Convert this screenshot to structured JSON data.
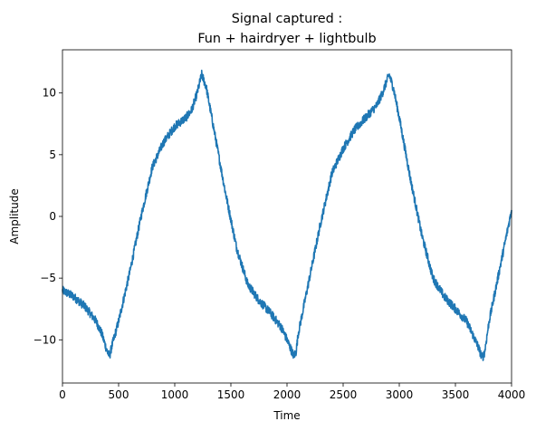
{
  "chart_data": {
    "type": "line",
    "title": "Signal captured :",
    "subtitle": "Fun + hairdryer + lightbulb",
    "xlabel": "Time",
    "ylabel": "Amplitude",
    "xlim": [
      0,
      4000
    ],
    "ylim": [
      -13.5,
      13.5
    ],
    "xticks": [
      0,
      500,
      1000,
      1500,
      2000,
      2500,
      3000,
      3500,
      4000
    ],
    "xtick_labels": [
      "0",
      "500",
      "1000",
      "1500",
      "2000",
      "2500",
      "3000",
      "3500",
      "4000"
    ],
    "yticks": [
      -10,
      -5,
      0,
      5,
      10
    ],
    "ytick_labels": [
      "−10",
      "−5",
      "0",
      "5",
      "10"
    ],
    "grid": false,
    "series": [
      {
        "color": "#1f77b4",
        "noise_amplitude": 0.35,
        "x": [
          0,
          100,
          200,
          300,
          350,
          400,
          420,
          440,
          500,
          600,
          700,
          800,
          900,
          1000,
          1100,
          1150,
          1200,
          1240,
          1280,
          1350,
          1450,
          1550,
          1650,
          1750,
          1850,
          1950,
          2000,
          2060,
          2080,
          2100,
          2200,
          2300,
          2400,
          2500,
          2600,
          2700,
          2800,
          2850,
          2910,
          2950,
          3000,
          3100,
          3200,
          3300,
          3400,
          3500,
          3600,
          3700,
          3740,
          3760,
          3800,
          3900,
          4000
        ],
        "y": [
          -6.0,
          -6.5,
          -7.3,
          -8.5,
          -9.5,
          -11.0,
          -11.3,
          -10.5,
          -8.5,
          -4.5,
          0.0,
          4.0,
          6.0,
          7.3,
          8.0,
          8.6,
          10.0,
          11.5,
          10.5,
          7.0,
          2.0,
          -2.5,
          -5.5,
          -6.8,
          -7.8,
          -9.0,
          -10.0,
          -11.3,
          -11.0,
          -9.5,
          -5.0,
          -0.5,
          3.5,
          5.5,
          7.0,
          8.0,
          9.0,
          10.0,
          11.5,
          10.3,
          8.0,
          3.0,
          -1.5,
          -5.0,
          -6.5,
          -7.5,
          -8.5,
          -10.5,
          -11.5,
          -11.0,
          -8.5,
          -4.0,
          0.5
        ]
      }
    ]
  }
}
